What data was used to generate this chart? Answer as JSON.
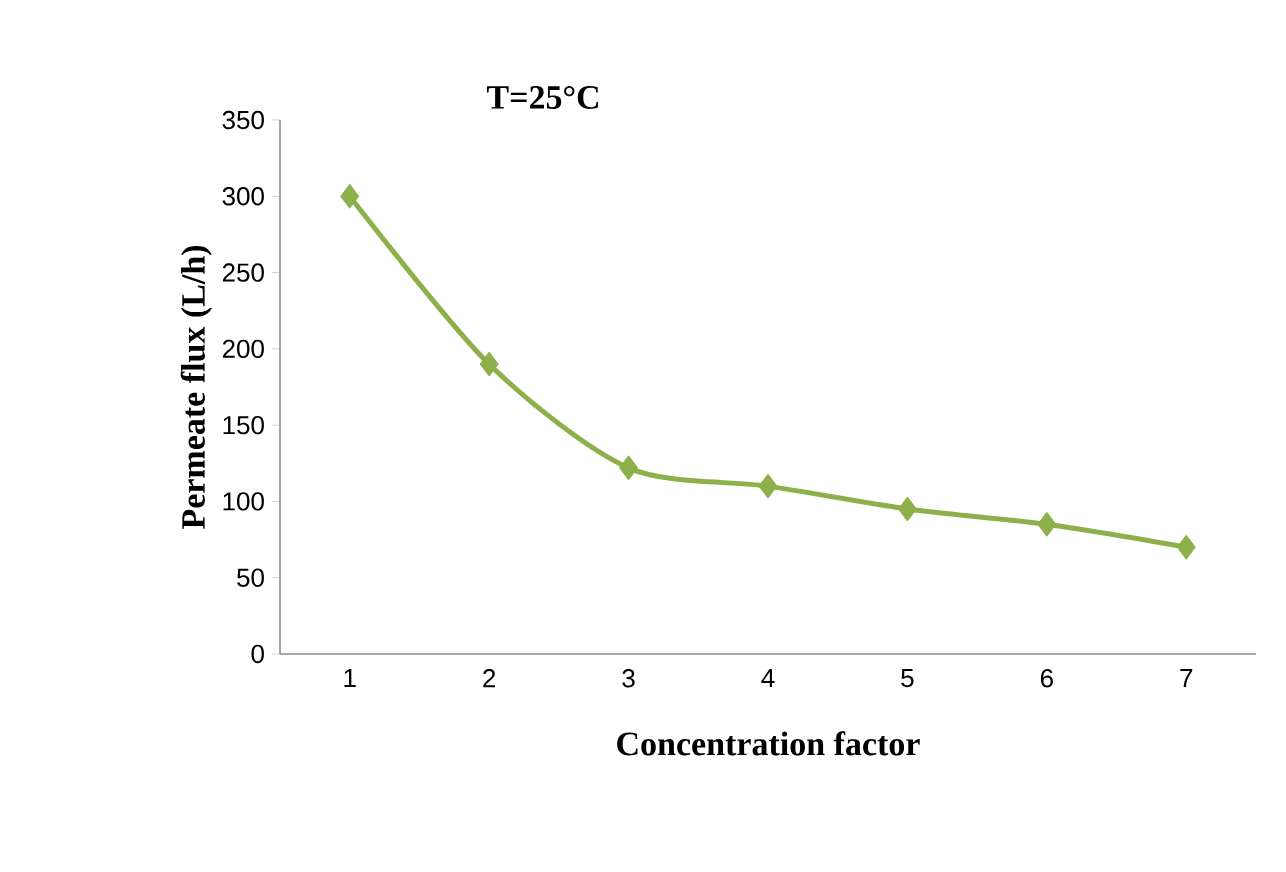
{
  "chart_data": {
    "type": "line",
    "title": "T=25°C",
    "xlabel": "Concentration  factor",
    "ylabel": "Permeate flux (L/h)",
    "categories": [
      "1",
      "2",
      "3",
      "4",
      "5",
      "6",
      "7"
    ],
    "series": [
      {
        "color": "#8db04a",
        "values": [
          300,
          190,
          122,
          110,
          95,
          85,
          70
        ]
      }
    ],
    "ylim": [
      0,
      350
    ],
    "yticks": [
      0,
      50,
      100,
      150,
      200,
      250,
      300,
      350
    ],
    "marker": "diamond",
    "line_style": "solid",
    "grid": false
  }
}
